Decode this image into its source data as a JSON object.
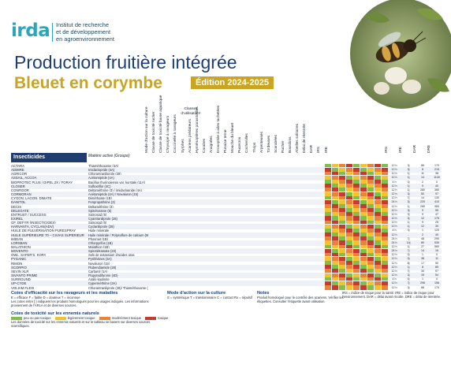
{
  "logo": {
    "mark_main": "irda",
    "line1": "Institut de recherche",
    "line2": "et de développement",
    "line3": "en agroenvironnement"
  },
  "title": "Production fruitière intégrée",
  "subtitle": "Bleuet en corymbe",
  "edition": "Édition 2024-2025",
  "headers": {
    "insecticides": "Insecticides",
    "active": "Matière active (Groupe)",
    "classes": "Classes d'utilisation¹"
  },
  "columns": [
    "Mode d'action sur la culture",
    "Classe de toxicité rucher",
    "Classe de toxicité faune aquatique",
    "Chrysope à ravageurs",
    "Coccinelle à ravageurs",
    "Syrphes",
    "Acariens prédateurs",
    "Hyménoptères parasitoïdes",
    "Carabes",
    "Araignées",
    "Drosophile à ailes tachetées",
    "Punaise terne",
    "Mouche du bleuet",
    "Pucerons",
    "Cochenilles",
    "Thrips",
    "Arpenteuses",
    "Tordeuses",
    "Scarabées",
    "Rucher",
    "Bourdons",
    "Abeilles solitaires",
    "Délai de réentrée",
    "DAR",
    "IRS",
    "IRE"
  ],
  "tail_headers": [
    "IRS",
    "IRE",
    "DAR",
    "DRE"
  ],
  "colors": {
    "green": "#7fbf4a",
    "yellow": "#f2c230",
    "orange": "#e9833a",
    "red": "#c63a2f",
    "blue": "#1f3d6e",
    "gold": "#c9a521"
  },
  "rows": [
    {
      "name": "ACTARA",
      "active": "Thiaméthoxame (4A)",
      "tail": [
        "12 h",
        "3j",
        "86",
        "170"
      ]
    },
    {
      "name": "ADMIRE",
      "active": "Imidaclopride (4A)",
      "tail": [
        "12 h",
        "3j",
        "8",
        "215"
      ]
    },
    {
      "name": "AGRICOR",
      "active": "Chlorantraniliprole (28)",
      "tail": [
        "12 h",
        "1j",
        "11",
        "38"
      ]
    },
    {
      "name": "ASSAIL, ACCOA",
      "active": "Acétamipride (4A)",
      "tail": [
        "12 h",
        "1j",
        "14",
        "1130"
      ]
    },
    {
      "name": "BIOPROTEC PLUS / DIPEL 2X / FORAY",
      "active": "Bacillus thuringiensis var. kurstaki (11A)",
      "tail": [
        "4 h",
        "0j",
        "2",
        "0"
      ]
    },
    {
      "name": "CLOSER",
      "active": "Sulfoxaflor (4C)",
      "tail": [
        "12 h",
        "1j",
        "9",
        "40"
      ]
    },
    {
      "name": "CONFIDOR",
      "active": "Deltaméthrine (3) / imidaclopride (4A)",
      "tail": [
        "12 h",
        "1j",
        "280",
        "380"
      ]
    },
    {
      "name": "CORMORAN",
      "active": "Acétamipride (4A) / Novaluron (15)",
      "tail": [
        "12 h",
        "3j",
        "50",
        "97"
      ]
    },
    {
      "name": "CYGON, LAGON, DIMATE",
      "active": "Diméthoate (1B)",
      "tail": [
        "12 h",
        "7j",
        "14",
        "130"
      ]
    },
    {
      "name": "DANITOL",
      "active": "Fenpropathrine (3)",
      "tail": [
        "24 h",
        "3j",
        "220",
        "410"
      ]
    },
    {
      "name": "DECIS",
      "active": "Deltaméthrine (3)",
      "tail": [
        "12 h",
        "1j",
        "280",
        "360"
      ]
    },
    {
      "name": "DELEGATE",
      "active": "Spinétorame (5)",
      "tail": [
        "12 h",
        "3j",
        "9",
        "55"
      ]
    },
    {
      "name": "ENTRUST / SUCCESS",
      "active": "Spinosad (5)",
      "tail": [
        "12 h",
        "3j",
        "9",
        "47"
      ]
    },
    {
      "name": "EXIREL",
      "active": "Cyantraniliprole (28)",
      "tail": [
        "12 h",
        "3j",
        "12",
        "175"
      ]
    },
    {
      "name": "GF, DEFYR (INSECTICIDES)",
      "active": "Spinosad (5)",
      "tail": [
        "12 h",
        "1j",
        "9",
        "25"
      ]
    },
    {
      "name": "HARVANTA, CYCLAN(ADV)",
      "active": "Cyclaniliprole (28)",
      "tail": [
        "12 h",
        "1j",
        "12",
        "30"
      ]
    },
    {
      "name": "HUILE DE PULVÉRISATION PURESPRAY",
      "active": "Huile minérale",
      "tail": [
        "4 h",
        "0j",
        "1",
        "120"
      ]
    },
    {
      "name": "HUILE SUPÉRIEURE 70 – CIVIAS SUPERIEUR",
      "active": "Huile minérale / Polysulfure de calcium (M2)",
      "tail": [
        "12 h",
        "-",
        "2",
        "40"
      ]
    },
    {
      "name": "IMIDAN",
      "active": "Phosmet (1B)",
      "tail": [
        "24 h",
        "7j",
        "48",
        "290"
      ]
    },
    {
      "name": "LORSBAN",
      "active": "Chlorpyrifos (1B)",
      "tail": [
        "24 h",
        "14j",
        "80",
        "530"
      ]
    },
    {
      "name": "MALATHION",
      "active": "Malathion (1B)",
      "tail": [
        "12 h",
        "1j",
        "27",
        "560"
      ]
    },
    {
      "name": "MOVENTO",
      "active": "Spirotétramate (23)",
      "tail": [
        "24 h",
        "7j",
        "14",
        "16"
      ]
    },
    {
      "name": "OWL, SAFER'S, KOPA",
      "active": "Sels de potassium d'acides gras",
      "tail": [
        "12 h",
        "0j",
        "1",
        "0"
      ]
    },
    {
      "name": "PYGANIC",
      "active": "Pyréthrines (3A)",
      "tail": [
        "12 h",
        "0j",
        "38",
        "11"
      ]
    },
    {
      "name": "RIMON",
      "active": "Novaluron (15)",
      "tail": [
        "12 h",
        "8j",
        "17",
        "50"
      ]
    },
    {
      "name": "SCORPIO",
      "active": "Flubendiamide (28)",
      "tail": [
        "12 h",
        "1j",
        "8",
        "89"
      ]
    },
    {
      "name": "SEVIN XLR",
      "active": "Carbaryl (1A)",
      "tail": [
        "12 h",
        "7j",
        "30",
        "97"
      ]
    },
    {
      "name": "SIVANTO PRIME",
      "active": "Flupyradifurone (4D)",
      "tail": [
        "12 h",
        "3j",
        "15",
        "54"
      ]
    },
    {
      "name": "SURROUND",
      "active": "Argile kaolinite",
      "tail": [
        "4 h",
        "0j",
        "1",
        "0"
      ]
    },
    {
      "name": "UP-CYDE",
      "active": "Cyperméthrine (3A)",
      "tail": [
        "12 h",
        "7j",
        "296",
        "156"
      ]
    },
    {
      "name": "VOLIAM FLEXI",
      "active": "Chlorantraniliprole (28)/ Thiaméthoxame (4A)",
      "tail": [
        "12 h",
        "3j",
        "88",
        "170"
      ]
    }
  ],
  "legend": {
    "efficacy_title": "Cotes d'efficacité sur les ravageurs et les maladies",
    "efficacy_items": "E = efficace   F = faible   D = douteux   ? = inconnue",
    "efficacy_text": "Les cotes entre [ ] indiquent les produits homologués pour les usages indiqués. Les informations proviennent de l'ARLA et de diverses sources.",
    "toxicity_title": "Cotes de toxicité sur les ennemis naturels",
    "tox_green": "peu ou pas toxique",
    "tox_yellow": "légèrement toxique",
    "tox_orange": "modérément toxique",
    "tox_red": "toxique",
    "tox_text": "Les données de toxicité sur les ennemis naturels et sur le tableau se basent sur diverses sources scientifiques.",
    "mode_title": "Mode d'action sur la culture",
    "mode_items": "S = systémique   T = translaminaire   C = contact   Rx = répulsif",
    "notes_title": "Notes",
    "notes_text": "Produit homologué pour le contrôle des acariens. Vérifier les étiquettes. Consulter l'étiquette avant utilisation.",
    "right_text": "IRS = indice de risque pour la santé. IRE = indice de risque pour l'environnement. DAR = délai avant récolte. DRE = délai de réentrée."
  }
}
